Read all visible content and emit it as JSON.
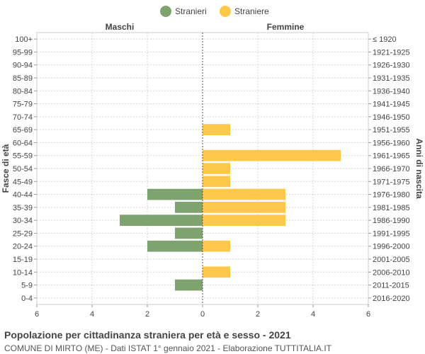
{
  "chart_data": {
    "type": "bar",
    "orientation": "horizontal-population-pyramid",
    "title": "Popolazione per cittadinanza straniera per età e sesso - 2021",
    "subtitle": "COMUNE DI MIRTO (ME) - Dati ISTAT 1° gennaio 2021 - Elaborazione TUTTITALIA.IT",
    "left_header": "Maschi",
    "right_header": "Femmine",
    "ylabel_left": "Fasce di età",
    "ylabel_right": "Anni di nascita",
    "xlim": [
      -6,
      6
    ],
    "x_ticks": [
      "6",
      "4",
      "2",
      "0",
      "2",
      "4",
      "6"
    ],
    "x_tick_values": [
      -6,
      -4,
      -2,
      0,
      2,
      4,
      6
    ],
    "legend": [
      {
        "name": "Stranieri",
        "color": "#7fa36f"
      },
      {
        "name": "Straniere",
        "color": "#ffc84a"
      }
    ],
    "categories": [
      "100+",
      "95-99",
      "90-94",
      "85-89",
      "80-84",
      "75-79",
      "70-74",
      "65-69",
      "60-64",
      "55-59",
      "50-54",
      "45-49",
      "40-44",
      "35-39",
      "30-34",
      "25-29",
      "20-24",
      "15-19",
      "10-14",
      "5-9",
      "0-4"
    ],
    "birth_years": [
      "≤ 1920",
      "1921-1925",
      "1926-1930",
      "1931-1935",
      "1936-1940",
      "1941-1945",
      "1946-1950",
      "1951-1955",
      "1956-1960",
      "1961-1965",
      "1966-1970",
      "1971-1975",
      "1976-1980",
      "1981-1985",
      "1986-1990",
      "1991-1995",
      "1996-2000",
      "2001-2005",
      "2006-2010",
      "2011-2015",
      "2016-2020"
    ],
    "series": [
      {
        "name": "Stranieri",
        "color": "#7fa36f",
        "values": [
          0,
          0,
          0,
          0,
          0,
          0,
          0,
          0,
          0,
          0,
          0,
          0,
          2,
          1,
          3,
          1,
          2,
          0,
          0,
          1,
          0
        ]
      },
      {
        "name": "Straniere",
        "color": "#ffc84a",
        "values": [
          0,
          0,
          0,
          0,
          0,
          0,
          0,
          1,
          0,
          5,
          1,
          1,
          3,
          3,
          3,
          0,
          1,
          0,
          1,
          0,
          0
        ]
      }
    ]
  }
}
